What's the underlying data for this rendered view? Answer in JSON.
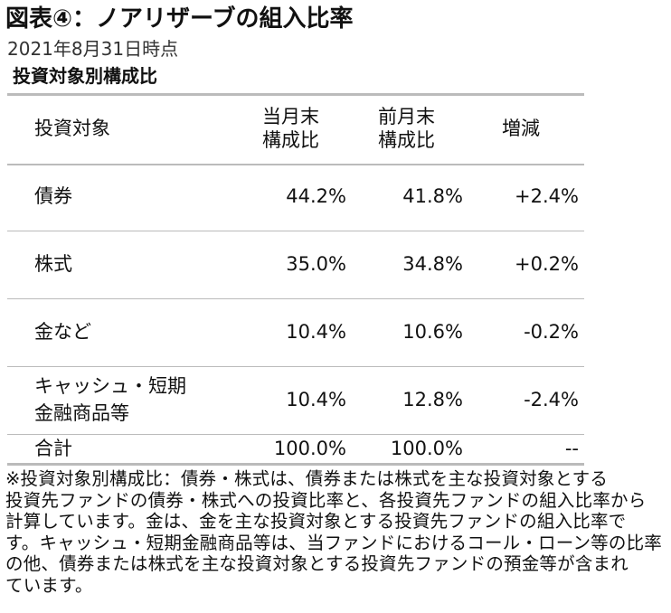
{
  "header": {
    "title": "図表④：ノアリザーブの組入比率",
    "subtitle": "2021年8月31日時点",
    "section": "投資対象別構成比"
  },
  "table": {
    "columns": [
      [
        "投資対象"
      ],
      [
        "当月末",
        "構成比"
      ],
      [
        "前月末",
        "構成比"
      ],
      [
        "増減"
      ]
    ],
    "rows": [
      [
        [
          "債券"
        ],
        "44.2%",
        "41.8%",
        "+2.4%"
      ],
      [
        [
          "株式"
        ],
        "35.0%",
        "34.8%",
        "+0.2%"
      ],
      [
        [
          "金など"
        ],
        "10.4%",
        "10.6%",
        "-0.2%"
      ],
      [
        [
          "キャッシュ・短期",
          "金融商品等"
        ],
        "10.4%",
        "12.8%",
        "-2.4%"
      ],
      [
        [
          "合計"
        ],
        "100.0%",
        "100.0%",
        "--"
      ]
    ]
  },
  "footnote": [
    "※投資対象別構成比：債券・株式は、債券または株式を主な投資対象とする",
    "投資先ファンドの債券・株式への投資比率と、各投資先ファンドの組入比率から",
    "計算しています。金は、金を主な投資対象とする投資先ファンドの組入比率で",
    "す。キャッシュ・短期金融商品等は、当ファンドにおけるコール・ローン等の比率",
    "の他、債券または株式を主な投資対象とする投資先ファンドの預金等が含まれ",
    "ています。"
  ]
}
